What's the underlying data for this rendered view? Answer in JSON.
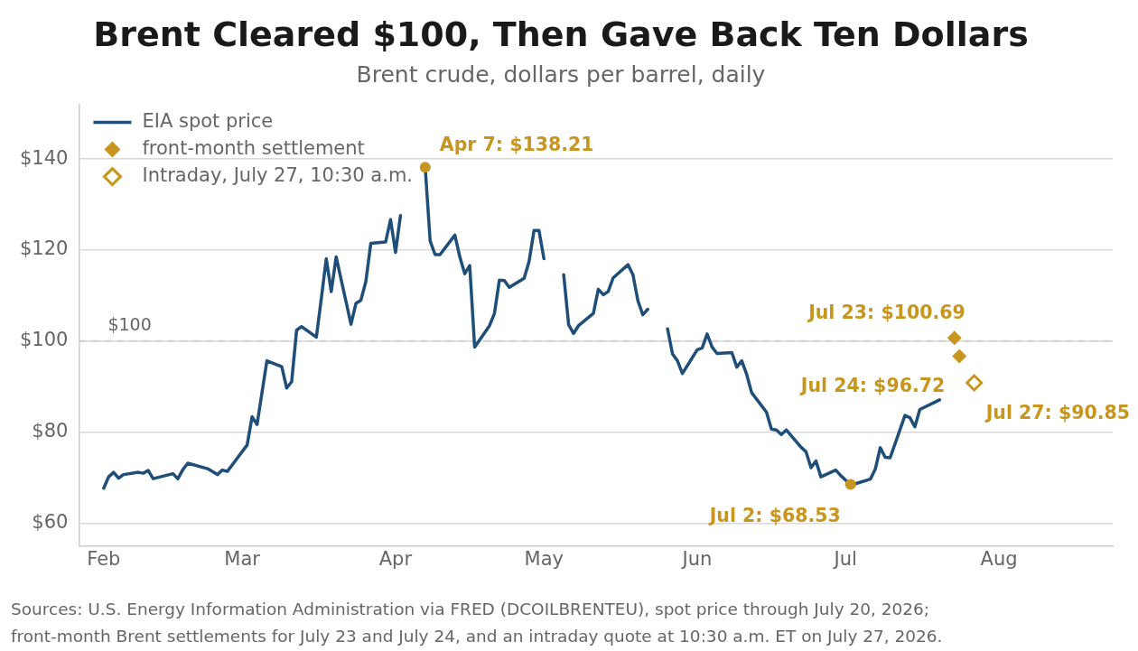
{
  "chart_data": {
    "type": "line",
    "title": "Brent Cleared $100, Then Gave Back Ten Dollars",
    "subtitle": "Brent crude, dollars per barrel, daily",
    "xlim": [
      "2026-01-27",
      "2026-08-24"
    ],
    "ylim": [
      55,
      152
    ],
    "xticks": [
      {
        "value": "2026-02-01",
        "label": "Feb"
      },
      {
        "value": "2026-03-01",
        "label": "Mar"
      },
      {
        "value": "2026-04-01",
        "label": "Apr"
      },
      {
        "value": "2026-05-01",
        "label": "May"
      },
      {
        "value": "2026-06-01",
        "label": "Jun"
      },
      {
        "value": "2026-07-01",
        "label": "Jul"
      },
      {
        "value": "2026-08-01",
        "label": "Aug"
      }
    ],
    "yticks": [
      {
        "value": 60,
        "label": "$60"
      },
      {
        "value": 80,
        "label": "$80"
      },
      {
        "value": 100,
        "label": "$100"
      },
      {
        "value": 120,
        "label": "$120"
      },
      {
        "value": 140,
        "label": "$140"
      }
    ],
    "grid": "y",
    "legend": "top left",
    "ref_lines": [
      {
        "axis": "y",
        "value": 100,
        "label": "$100",
        "color": "#d0d0d0",
        "line_style": "dashed"
      }
    ],
    "series": [
      {
        "name": "EIA spot price",
        "color": "#1f4e79",
        "marker": "none",
        "x": [
          "2026-02-01",
          "2026-02-02",
          "2026-02-03",
          "2026-02-04",
          "2026-02-05",
          "2026-02-08",
          "2026-02-09",
          "2026-02-10",
          "2026-02-11",
          "2026-02-15",
          "2026-02-16",
          "2026-02-17",
          "2026-02-18",
          "2026-02-22",
          "2026-02-24",
          "2026-02-25",
          "2026-02-26",
          "2026-03-02",
          "2026-03-03",
          "2026-03-04",
          "2026-03-06",
          "2026-03-09",
          "2026-03-10",
          "2026-03-11",
          "2026-03-12",
          "2026-03-13",
          "2026-03-16",
          "2026-03-17",
          "2026-03-18",
          "2026-03-19",
          "2026-03-20",
          "2026-03-23",
          "2026-03-24",
          "2026-03-25",
          "2026-03-26",
          "2026-03-27",
          "2026-03-30",
          "2026-03-31",
          "2026-04-01",
          "2026-04-02",
          "2026-04-06",
          "2026-04-07",
          "2026-04-08",
          "2026-04-09",
          "2026-04-10",
          "2026-04-13",
          "2026-04-14",
          "2026-04-15",
          "2026-04-16",
          "2026-04-17",
          "2026-04-20",
          "2026-04-21",
          "2026-04-22",
          "2026-04-23",
          "2026-04-24",
          "2026-04-27",
          "2026-04-28",
          "2026-04-29",
          "2026-04-30",
          "2026-05-01",
          "2026-05-04",
          "2026-05-05",
          "2026-05-06",
          "2026-05-07",
          "2026-05-08",
          "2026-05-11",
          "2026-05-12",
          "2026-05-13",
          "2026-05-14",
          "2026-05-15",
          "2026-05-18",
          "2026-05-19",
          "2026-05-20",
          "2026-05-21",
          "2026-05-22",
          "2026-05-25",
          "2026-05-26",
          "2026-05-27",
          "2026-05-28",
          "2026-05-29",
          "2026-06-01",
          "2026-06-02",
          "2026-06-03",
          "2026-06-04",
          "2026-06-05",
          "2026-06-08",
          "2026-06-09",
          "2026-06-10",
          "2026-06-11",
          "2026-06-12",
          "2026-06-15",
          "2026-06-16",
          "2026-06-17",
          "2026-06-18",
          "2026-06-19",
          "2026-06-22",
          "2026-06-23",
          "2026-06-24",
          "2026-06-25",
          "2026-06-26",
          "2026-06-29",
          "2026-06-30",
          "2026-07-01",
          "2026-07-02",
          "2026-07-03",
          "2026-07-06",
          "2026-07-07",
          "2026-07-08",
          "2026-07-09",
          "2026-07-10",
          "2026-07-13",
          "2026-07-14",
          "2026-07-15",
          "2026-07-16",
          "2026-07-20"
        ],
        "values": [
          67.7,
          70.2,
          71.2,
          69.9,
          70.7,
          71.2,
          71.0,
          71.6,
          69.8,
          70.9,
          69.8,
          71.8,
          73.2,
          72.0,
          70.7,
          71.7,
          71.4,
          77.2,
          83.4,
          81.7,
          95.7,
          94.4,
          89.7,
          91.1,
          102.4,
          103.2,
          100.9,
          109.4,
          118.1,
          110.9,
          118.5,
          103.7,
          108.3,
          109.0,
          113.1,
          121.5,
          121.8,
          126.7,
          119.5,
          127.6,
          null,
          138.21,
          122.0,
          119.0,
          119.0,
          123.3,
          118.5,
          114.8,
          116.6,
          98.7,
          103.4,
          106.1,
          113.4,
          113.3,
          111.8,
          113.8,
          117.5,
          124.3,
          124.3,
          118.1,
          null,
          114.6,
          103.6,
          101.7,
          103.4,
          106.1,
          111.4,
          110.2,
          110.9,
          113.9,
          116.8,
          114.6,
          108.9,
          105.8,
          107.0,
          null,
          102.7,
          97.2,
          95.7,
          92.9,
          98.1,
          98.5,
          101.6,
          98.7,
          97.3,
          97.5,
          94.3,
          95.7,
          92.7,
          88.7,
          84.4,
          80.7,
          80.5,
          79.5,
          80.5,
          76.7,
          75.7,
          72.2,
          73.7,
          70.2,
          71.7,
          70.5,
          69.5,
          68.53,
          68.7,
          69.7,
          71.9,
          76.6,
          74.5,
          74.4,
          83.7,
          83.2,
          81.2,
          85.0,
          87.1
        ]
      },
      {
        "type": "scatter",
        "color": "#c8961e",
        "marker": "circle",
        "x": [
          "2026-04-07",
          "2026-07-02"
        ],
        "values": [
          138.21,
          68.53
        ]
      },
      {
        "name": "front-month settlement",
        "type": "scatter",
        "color": "#c8961e",
        "marker": "diamond",
        "x": [
          "2026-07-23",
          "2026-07-24"
        ],
        "values": [
          100.69,
          96.72
        ]
      },
      {
        "name": "Intraday, July 27, 10:30 a.m.",
        "type": "scatter",
        "color": "#c8961e",
        "marker": "diamond",
        "x": [
          "2026-07-27"
        ],
        "values": [
          90.85
        ]
      }
    ],
    "annotations": [
      {
        "text": "Apr 7: $138.21",
        "x": "2026-04-07",
        "y": 138.21
      },
      {
        "text": "Jul 2: $68.53",
        "x": "2026-07-02",
        "y": 68.53
      },
      {
        "text": "Jul 23: $100.69",
        "x": "2026-07-23",
        "y": 100.69
      },
      {
        "text": "Jul 24: $96.72",
        "x": "2026-07-24",
        "y": 96.72
      },
      {
        "text": "Jul 27: $90.85",
        "x": "2026-07-27",
        "y": 90.85
      },
      "Sources: U.S. Energy Information Administration via FRED (DCOILBRENTEU), spot price through July 20, 2026;",
      "front-month Brent settlements for July 23 and July 24, and an intraday quote at 10:30 a.m. ET on July 27, 2026."
    ]
  }
}
